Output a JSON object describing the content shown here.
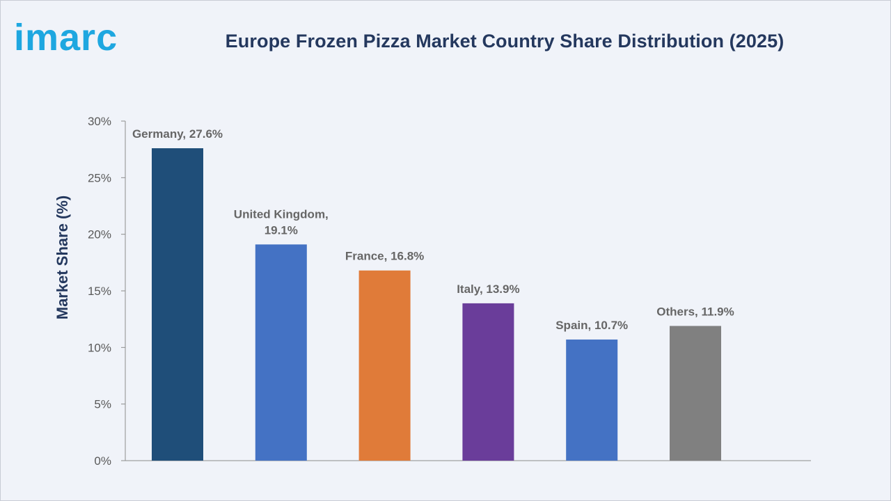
{
  "brand": {
    "logo_text": "imarc"
  },
  "chart_data": {
    "type": "bar",
    "title": "Europe Frozen Pizza Market Country Share Distribution (2025)",
    "xlabel": "",
    "ylabel": "Market Share (%)",
    "ylim": [
      0,
      30
    ],
    "yticks": [
      "0%",
      "5%",
      "10%",
      "15%",
      "20%",
      "25%",
      "30%"
    ],
    "ytick_values": [
      0,
      5,
      10,
      15,
      20,
      25,
      30
    ],
    "grid": false,
    "legend": "none",
    "categories": [
      "Germany",
      "United Kingdom",
      "France",
      "Italy",
      "Spain",
      "Others"
    ],
    "values": [
      27.6,
      19.1,
      16.8,
      13.9,
      10.7,
      11.9
    ],
    "data_labels": [
      [
        "Germany, 27.6%"
      ],
      [
        "United Kingdom,",
        "19.1%"
      ],
      [
        "France, 16.8%"
      ],
      [
        "Italy, 13.9%"
      ],
      [
        "Spain, 10.7%"
      ],
      [
        "Others, 11.9%"
      ]
    ],
    "colors": [
      "#1f4e79",
      "#4472c4",
      "#e07b39",
      "#6a3d9a",
      "#4472c4",
      "#808080"
    ]
  }
}
